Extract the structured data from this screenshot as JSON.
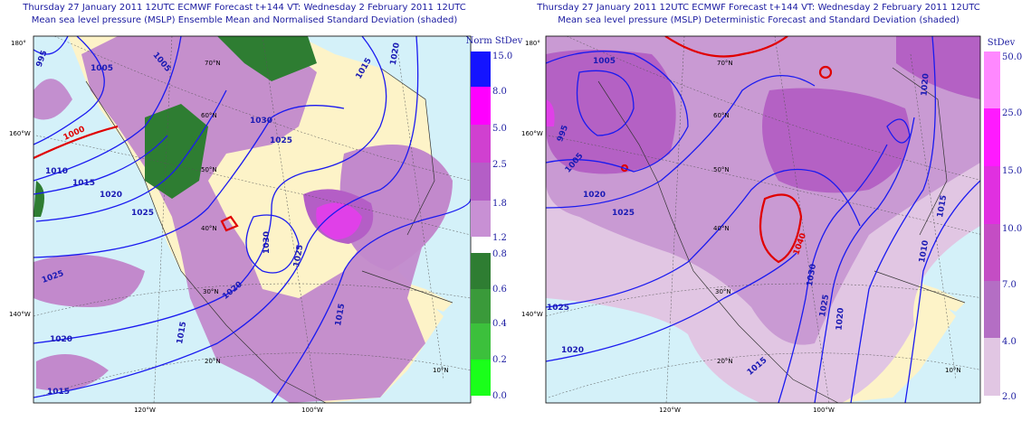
{
  "panels": [
    {
      "title_line1": "Thursday 27 January 2011 12UTC ECMWF Forecast t+144  VT: Wednesday 2 February 2011 12UTC",
      "title_line2": "Mean sea level pressure (MSLP) Ensemble Mean and Normalised Standard Deviation (shaded)",
      "colorbar": {
        "title": "Norm StDev",
        "labels": [
          "15.0",
          "8.0",
          "5.0",
          "2.5",
          "1.8",
          "1.2",
          "0.8",
          "0.6",
          "0.4",
          "0.2",
          "0.0"
        ]
      },
      "outer_labels": [
        "180°",
        "160°W",
        "140°W",
        "120°W",
        "100°W"
      ],
      "inner_labels": [
        "70°N",
        "60°N",
        "50°N",
        "40°N",
        "30°N",
        "20°N",
        "10°N"
      ],
      "contour_labels": [
        "995",
        "1005",
        "1005",
        "1000",
        "1010",
        "1015",
        "1020",
        "1025",
        "1030",
        "1025",
        "1015",
        "1020",
        "1030",
        "1025",
        "1020",
        "1015",
        "1015",
        "1025",
        "1020",
        "1015"
      ]
    },
    {
      "title_line1": "Thursday 27 January 2011 12UTC ECMWF Forecast t+144  VT: Wednesday 2 February 2011 12UTC",
      "title_line2": "Mean sea level pressure (MSLP) Deterministic Forecast and Standard Deviation (shaded)",
      "colorbar": {
        "title": "StDev",
        "labels": [
          "50.0",
          "25.0",
          "15.0",
          "10.0",
          "7.0",
          "4.0",
          "2.0"
        ]
      },
      "outer_labels": [
        "180°",
        "160°W",
        "140°W",
        "120°W",
        "100°W"
      ],
      "inner_labels": [
        "70°N",
        "60°N",
        "50°N",
        "40°N",
        "30°N",
        "20°N",
        "10°N"
      ],
      "contour_labels": [
        "995",
        "1005",
        "1020",
        "1025",
        "1025",
        "1020",
        "1015",
        "1040",
        "1030",
        "1025",
        "1020",
        "1020",
        "1015",
        "1010",
        "1005"
      ]
    }
  ]
}
